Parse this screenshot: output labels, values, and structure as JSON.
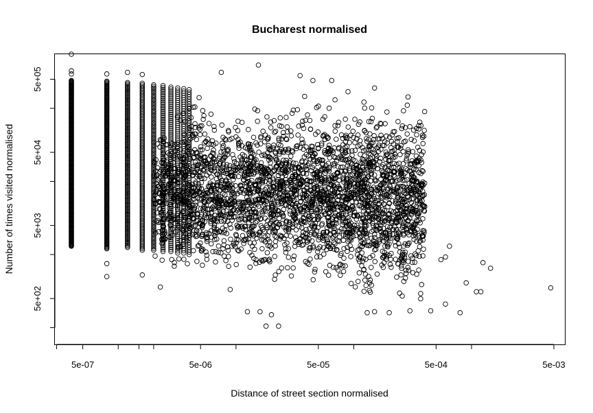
{
  "chart_data": {
    "type": "scatter",
    "title": "Bucharest normalised",
    "xlabel": "Distance of street section normalised",
    "ylabel": "Number of times visited normalised",
    "x_scale": "log",
    "y_scale": "log",
    "xlim": [
      2.9e-07,
      0.0062
    ],
    "ylim": [
      118,
      1100000
    ],
    "grid": false,
    "legend": "none",
    "marker": "open-circle",
    "marker_color": "#000000",
    "x_ticks": [
      3e-07,
      5e-07,
      1e-06,
      1.5e-06,
      2e-06,
      5e-06,
      1e-05,
      5e-05,
      0.0001,
      0.0005,
      0.001,
      0.005
    ],
    "x_tick_labels": [
      {
        "value": 5e-07,
        "label": "5e-07"
      },
      {
        "value": 5e-06,
        "label": "5e-06"
      },
      {
        "value": 5e-05,
        "label": "5e-05"
      },
      {
        "value": 0.0005,
        "label": "5e-04"
      },
      {
        "value": 0.005,
        "label": "5e-03"
      }
    ],
    "y_ticks": [
      200,
      500,
      2000,
      5000,
      20000,
      50000,
      200000,
      500000
    ],
    "y_tick_labels": [
      {
        "value": 500,
        "label": "5e+02"
      },
      {
        "value": 5000,
        "label": "5e+03"
      },
      {
        "value": 50000,
        "label": "5e+04"
      },
      {
        "value": 500000,
        "label": "5e+05"
      }
    ],
    "columns": [
      {
        "x": 4e-07,
        "ymin": 2600,
        "ymax": 480000,
        "n": 260
      },
      {
        "x": 8e-07,
        "ymin": 2400,
        "ymax": 470000,
        "n": 170
      },
      {
        "x": 1.2e-06,
        "ymin": 2500,
        "ymax": 450000,
        "n": 130
      },
      {
        "x": 1.6e-06,
        "ymin": 2300,
        "ymax": 440000,
        "n": 110
      },
      {
        "x": 2e-06,
        "ymin": 2300,
        "ymax": 420000,
        "n": 100
      },
      {
        "x": 2.4e-06,
        "ymin": 2200,
        "ymax": 410000,
        "n": 90
      },
      {
        "x": 2.8e-06,
        "ymin": 2200,
        "ymax": 390000,
        "n": 85
      },
      {
        "x": 3.2e-06,
        "ymin": 2100,
        "ymax": 380000,
        "n": 80
      },
      {
        "x": 3.6e-06,
        "ymin": 2100,
        "ymax": 370000,
        "n": 75
      },
      {
        "x": 4e-06,
        "ymin": 2000,
        "ymax": 360000,
        "n": 70
      }
    ],
    "cloud": {
      "x_range": [
        2e-06,
        0.0004
      ],
      "y_center": 14000,
      "y_spread_log10": 0.42,
      "n": 3200
    },
    "extremes": [
      {
        "x": 4e-07,
        "y": 1100000
      },
      {
        "x": 4e-07,
        "y": 650000
      },
      {
        "x": 4e-07,
        "y": 590000
      },
      {
        "x": 8e-07,
        "y": 590000
      },
      {
        "x": 8e-07,
        "y": 1000
      },
      {
        "x": 8e-07,
        "y": 1500
      },
      {
        "x": 1.2e-06,
        "y": 620000
      },
      {
        "x": 1.6e-06,
        "y": 580000
      },
      {
        "x": 1.6e-06,
        "y": 1050
      },
      {
        "x": 7.5e-06,
        "y": 620000
      },
      {
        "x": 1.55e-05,
        "y": 780000
      },
      {
        "x": 1.8e-05,
        "y": 210
      },
      {
        "x": 1.6e-05,
        "y": 330
      },
      {
        "x": 2e-05,
        "y": 300
      },
      {
        "x": 2.3e-05,
        "y": 210
      },
      {
        "x": 1.25e-05,
        "y": 330
      },
      {
        "x": 0.00013,
        "y": 320
      },
      {
        "x": 0.00015,
        "y": 330
      },
      {
        "x": 0.0002,
        "y": 320
      },
      {
        "x": 0.00045,
        "y": 340
      },
      {
        "x": 0.0006,
        "y": 420
      },
      {
        "x": 0.0008,
        "y": 320
      },
      {
        "x": 0.00125,
        "y": 1550
      },
      {
        "x": 0.00145,
        "y": 1300
      },
      {
        "x": 0.0011,
        "y": 620
      },
      {
        "x": 0.0012,
        "y": 620
      },
      {
        "x": 0.0009,
        "y": 820
      },
      {
        "x": 0.0047,
        "y": 700
      },
      {
        "x": 0.00065,
        "y": 2600
      },
      {
        "x": 0.0006,
        "y": 1850
      },
      {
        "x": 0.00055,
        "y": 1700
      },
      {
        "x": 0.0003,
        "y": 340
      },
      {
        "x": 4.5e-05,
        "y": 480000
      },
      {
        "x": 3.5e-05,
        "y": 560000
      },
      {
        "x": 6.5e-05,
        "y": 480000
      },
      {
        "x": 0.00015,
        "y": 380000
      }
    ]
  }
}
